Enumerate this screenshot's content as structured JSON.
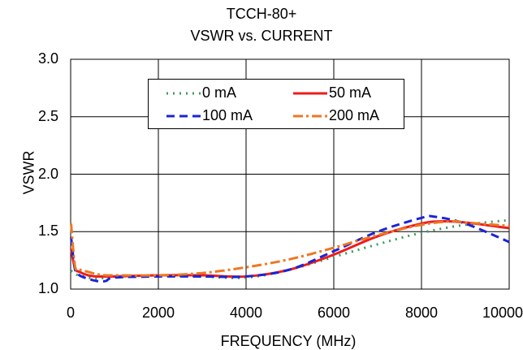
{
  "chart_data": {
    "type": "line",
    "title": "TCCH-80+",
    "subtitle": "VSWR vs. CURRENT",
    "xlabel": "FREQUENCY (MHz)",
    "ylabel": "VSWR",
    "xlim": [
      0,
      10000
    ],
    "ylim": [
      1.0,
      3.0
    ],
    "x_ticks": [
      "0",
      "2000",
      "4000",
      "6000",
      "8000",
      "10000"
    ],
    "y_ticks": [
      "1.0",
      "1.5",
      "2.0",
      "2.5",
      "3.0"
    ],
    "grid": true,
    "legend_position": "top-center",
    "series": [
      {
        "name": "0 mA",
        "color": "#3a9a5b",
        "style": "dotted",
        "x": [
          10,
          100,
          200,
          400,
          600,
          800,
          1000,
          2000,
          3000,
          4000,
          5000,
          6000,
          7000,
          8000,
          9000,
          10000
        ],
        "y": [
          1.16,
          1.13,
          1.12,
          1.1,
          1.09,
          1.1,
          1.11,
          1.12,
          1.11,
          1.1,
          1.17,
          1.28,
          1.39,
          1.49,
          1.56,
          1.6
        ]
      },
      {
        "name": "50 mA",
        "color": "#ee1c1c",
        "style": "solid",
        "x": [
          10,
          100,
          200,
          400,
          600,
          800,
          1000,
          2000,
          3000,
          4000,
          5000,
          6000,
          7000,
          8000,
          8500,
          9000,
          10000
        ],
        "y": [
          1.35,
          1.18,
          1.15,
          1.12,
          1.11,
          1.11,
          1.11,
          1.12,
          1.12,
          1.11,
          1.17,
          1.3,
          1.46,
          1.57,
          1.59,
          1.58,
          1.53
        ]
      },
      {
        "name": "100 mA",
        "color": "#1a24d8",
        "style": "dashed",
        "x": [
          10,
          100,
          200,
          400,
          600,
          800,
          1000,
          2000,
          3000,
          4000,
          5000,
          6000,
          7000,
          8000,
          8300,
          9000,
          10000
        ],
        "y": [
          1.45,
          1.17,
          1.12,
          1.09,
          1.07,
          1.07,
          1.1,
          1.11,
          1.11,
          1.11,
          1.17,
          1.33,
          1.5,
          1.62,
          1.63,
          1.57,
          1.41
        ]
      },
      {
        "name": "200 mA",
        "color": "#ee7722",
        "style": "dashdot",
        "x": [
          10,
          100,
          200,
          400,
          600,
          800,
          1000,
          2000,
          3000,
          4000,
          5000,
          6000,
          7000,
          8000,
          8700,
          9000,
          10000
        ],
        "y": [
          1.57,
          1.2,
          1.17,
          1.15,
          1.13,
          1.12,
          1.12,
          1.12,
          1.14,
          1.19,
          1.26,
          1.36,
          1.47,
          1.56,
          1.59,
          1.58,
          1.55
        ]
      }
    ]
  }
}
